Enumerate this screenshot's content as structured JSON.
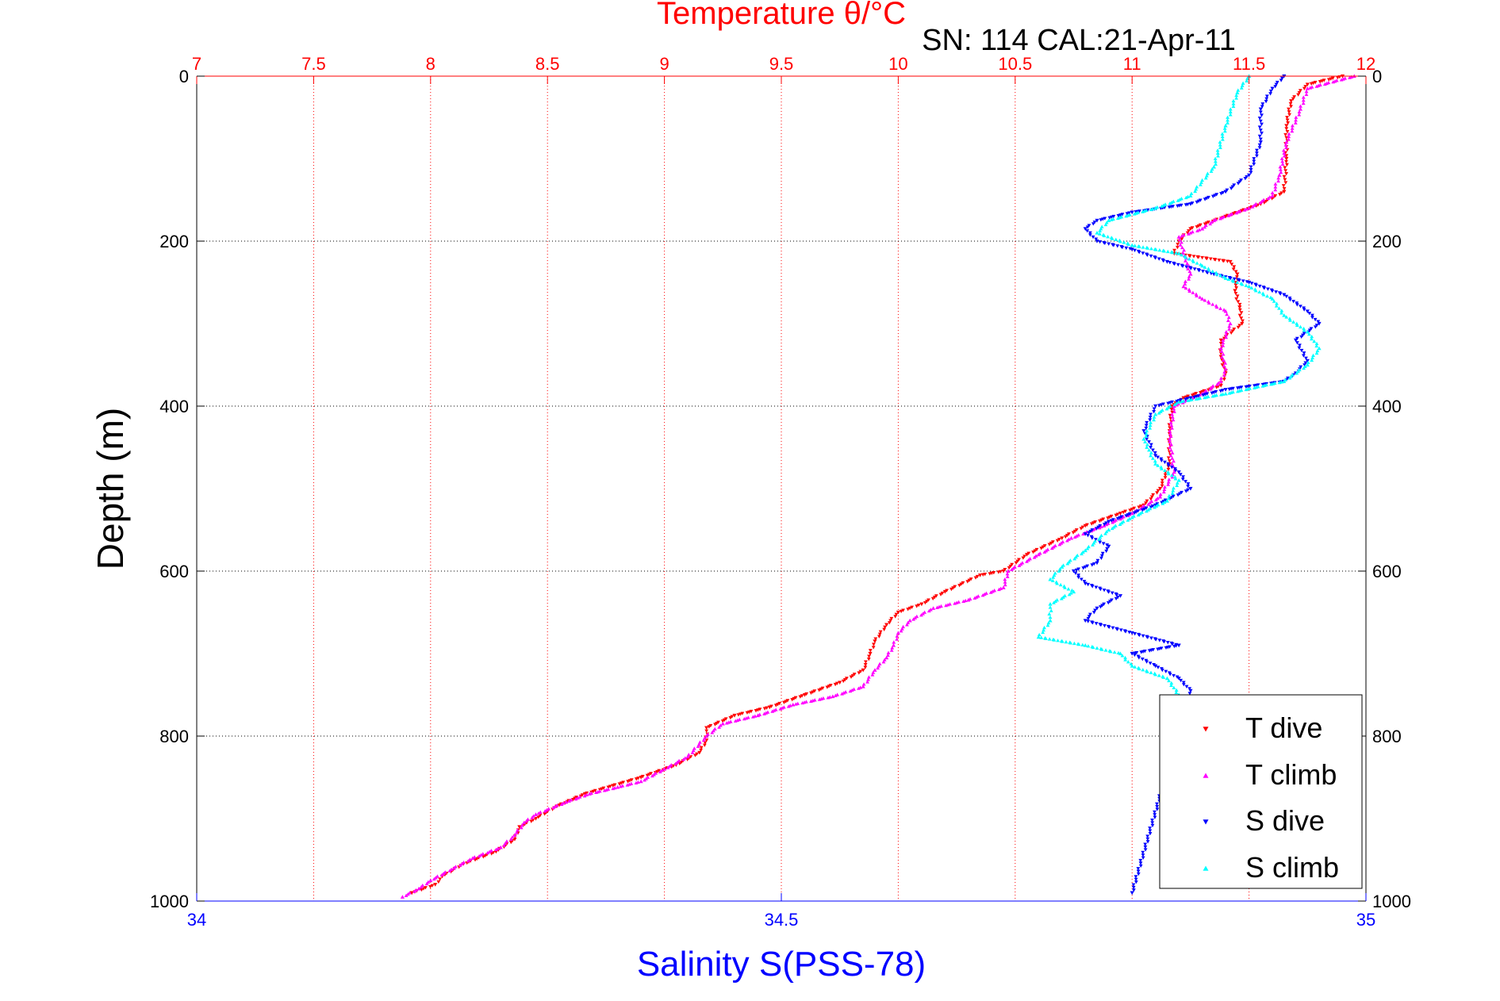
{
  "chart_data": {
    "type": "scatter",
    "title": "SN: 114  CAL:21-Apr-11",
    "top_axis": {
      "label": "Temperature θ/°C",
      "range": [
        7,
        12
      ],
      "ticks": [
        7,
        7.5,
        8,
        8.5,
        9,
        9.5,
        10,
        10.5,
        11,
        11.5,
        12
      ],
      "tick_labels": [
        "7",
        "7.5",
        "8",
        "8.5",
        "9",
        "9.5",
        "10",
        "10.5",
        "11",
        "11.5",
        "12"
      ],
      "color": "#ff0000"
    },
    "bottom_axis": {
      "label": "Salinity S(PSS-78)",
      "range": [
        34,
        35
      ],
      "ticks": [
        34,
        34.5,
        35
      ],
      "tick_labels": [
        "34",
        "34.5",
        "35"
      ],
      "color": "#0000ff"
    },
    "y_axis": {
      "label": "Depth (m)",
      "range": [
        0,
        1000
      ],
      "reversed": true,
      "ticks": [
        0,
        200,
        400,
        600,
        800,
        1000
      ],
      "tick_labels": [
        "0",
        "200",
        "400",
        "600",
        "800",
        "1000"
      ]
    },
    "grid": {
      "vertical": "red dotted at temperature ticks",
      "horizontal": "black dotted at depth ticks"
    },
    "legend": {
      "placement": "bottom-right",
      "entries": [
        "T dive",
        "T climb",
        "S dive",
        "S climb"
      ]
    },
    "series": [
      {
        "name": "T dive",
        "axis": "temperature",
        "color": "#ff0000",
        "marker": "triangle-down",
        "points": [
          [
            11.9,
            0
          ],
          [
            11.75,
            10
          ],
          [
            11.68,
            30
          ],
          [
            11.66,
            60
          ],
          [
            11.66,
            100
          ],
          [
            11.65,
            140
          ],
          [
            11.55,
            155
          ],
          [
            11.4,
            170
          ],
          [
            11.25,
            185
          ],
          [
            11.2,
            200
          ],
          [
            11.18,
            215
          ],
          [
            11.42,
            225
          ],
          [
            11.45,
            240
          ],
          [
            11.44,
            260
          ],
          [
            11.46,
            280
          ],
          [
            11.47,
            300
          ],
          [
            11.38,
            320
          ],
          [
            11.38,
            340
          ],
          [
            11.4,
            360
          ],
          [
            11.38,
            375
          ],
          [
            11.22,
            390
          ],
          [
            11.17,
            400
          ],
          [
            11.16,
            430
          ],
          [
            11.16,
            470
          ],
          [
            11.12,
            500
          ],
          [
            11.05,
            520
          ],
          [
            10.95,
            530
          ],
          [
            10.8,
            545
          ],
          [
            10.7,
            560
          ],
          [
            10.55,
            580
          ],
          [
            10.45,
            600
          ],
          [
            10.35,
            605
          ],
          [
            10.2,
            625
          ],
          [
            10.1,
            640
          ],
          [
            10.0,
            650
          ],
          [
            9.95,
            665
          ],
          [
            9.9,
            685
          ],
          [
            9.88,
            700
          ],
          [
            9.85,
            720
          ],
          [
            9.75,
            735
          ],
          [
            9.6,
            750
          ],
          [
            9.45,
            765
          ],
          [
            9.3,
            775
          ],
          [
            9.18,
            790
          ],
          [
            9.18,
            805
          ],
          [
            9.15,
            820
          ],
          [
            9.05,
            835
          ],
          [
            8.9,
            850
          ],
          [
            8.78,
            860
          ],
          [
            8.66,
            870
          ],
          [
            8.54,
            885
          ],
          [
            8.45,
            900
          ],
          [
            8.38,
            910
          ],
          [
            8.36,
            925
          ],
          [
            8.28,
            940
          ],
          [
            8.14,
            955
          ],
          [
            8.05,
            970
          ],
          [
            8.02,
            980
          ],
          [
            7.92,
            990
          ]
        ]
      },
      {
        "name": "T climb",
        "axis": "temperature",
        "color": "#ff00ff",
        "marker": "triangle-up",
        "points": [
          [
            11.95,
            0
          ],
          [
            11.75,
            15
          ],
          [
            11.72,
            40
          ],
          [
            11.66,
            80
          ],
          [
            11.63,
            120
          ],
          [
            11.6,
            145
          ],
          [
            11.5,
            160
          ],
          [
            11.35,
            175
          ],
          [
            11.3,
            185
          ],
          [
            11.2,
            195
          ],
          [
            11.25,
            240
          ],
          [
            11.22,
            255
          ],
          [
            11.3,
            270
          ],
          [
            11.4,
            285
          ],
          [
            11.42,
            300
          ],
          [
            11.38,
            330
          ],
          [
            11.4,
            355
          ],
          [
            11.38,
            370
          ],
          [
            11.3,
            385
          ],
          [
            11.18,
            400
          ],
          [
            11.16,
            440
          ],
          [
            11.18,
            480
          ],
          [
            11.12,
            510
          ],
          [
            11.0,
            530
          ],
          [
            10.88,
            545
          ],
          [
            10.74,
            560
          ],
          [
            10.6,
            580
          ],
          [
            10.47,
            600
          ],
          [
            10.45,
            620
          ],
          [
            10.3,
            635
          ],
          [
            10.15,
            645
          ],
          [
            10.05,
            660
          ],
          [
            10.0,
            675
          ],
          [
            9.98,
            690
          ],
          [
            9.95,
            705
          ],
          [
            9.9,
            720
          ],
          [
            9.85,
            740
          ],
          [
            9.72,
            752
          ],
          [
            9.55,
            762
          ],
          [
            9.4,
            775
          ],
          [
            9.25,
            785
          ],
          [
            9.18,
            800
          ],
          [
            9.1,
            825
          ],
          [
            9.0,
            840
          ],
          [
            8.9,
            855
          ],
          [
            8.8,
            862
          ],
          [
            8.68,
            870
          ],
          [
            8.58,
            880
          ],
          [
            8.45,
            895
          ],
          [
            8.4,
            905
          ],
          [
            8.36,
            920
          ],
          [
            8.3,
            935
          ],
          [
            8.18,
            948
          ],
          [
            8.1,
            960
          ],
          [
            8.0,
            975
          ],
          [
            7.95,
            985
          ],
          [
            7.88,
            995
          ]
        ]
      },
      {
        "name": "S dive",
        "axis": "salinity",
        "color": "#0000ff",
        "marker": "triangle-down",
        "points": [
          [
            34.93,
            0
          ],
          [
            34.92,
            15
          ],
          [
            34.91,
            40
          ],
          [
            34.91,
            80
          ],
          [
            34.9,
            120
          ],
          [
            34.88,
            140
          ],
          [
            34.85,
            155
          ],
          [
            34.8,
            165
          ],
          [
            34.77,
            175
          ],
          [
            34.76,
            185
          ],
          [
            34.77,
            200
          ],
          [
            34.8,
            210
          ],
          [
            34.83,
            225
          ],
          [
            34.87,
            240
          ],
          [
            34.9,
            250
          ],
          [
            34.93,
            265
          ],
          [
            34.95,
            285
          ],
          [
            34.96,
            300
          ],
          [
            34.94,
            320
          ],
          [
            34.95,
            345
          ],
          [
            34.94,
            360
          ],
          [
            34.93,
            370
          ],
          [
            34.88,
            380
          ],
          [
            34.85,
            390
          ],
          [
            34.82,
            400
          ],
          [
            34.81,
            430
          ],
          [
            34.82,
            460
          ],
          [
            34.84,
            480
          ],
          [
            34.85,
            500
          ],
          [
            34.82,
            520
          ],
          [
            34.78,
            540
          ],
          [
            34.76,
            555
          ],
          [
            34.78,
            570
          ],
          [
            34.77,
            590
          ],
          [
            34.75,
            600
          ],
          [
            34.76,
            615
          ],
          [
            34.79,
            630
          ],
          [
            34.77,
            645
          ],
          [
            34.76,
            660
          ],
          [
            34.8,
            675
          ],
          [
            34.84,
            690
          ],
          [
            34.8,
            700
          ],
          [
            34.82,
            715
          ],
          [
            34.84,
            730
          ],
          [
            34.85,
            745
          ],
          [
            34.8,
            990
          ]
        ]
      },
      {
        "name": "S climb",
        "axis": "salinity",
        "color": "#00ffff",
        "marker": "triangle-up",
        "points": [
          [
            34.9,
            0
          ],
          [
            34.89,
            20
          ],
          [
            34.88,
            60
          ],
          [
            34.87,
            110
          ],
          [
            34.85,
            145
          ],
          [
            34.82,
            160
          ],
          [
            34.78,
            175
          ],
          [
            34.77,
            190
          ],
          [
            34.8,
            205
          ],
          [
            34.84,
            215
          ],
          [
            34.86,
            230
          ],
          [
            34.88,
            245
          ],
          [
            34.9,
            255
          ],
          [
            34.92,
            270
          ],
          [
            34.93,
            290
          ],
          [
            34.95,
            310
          ],
          [
            34.96,
            330
          ],
          [
            34.95,
            350
          ],
          [
            34.93,
            370
          ],
          [
            34.88,
            385
          ],
          [
            34.84,
            395
          ],
          [
            34.82,
            410
          ],
          [
            34.81,
            440
          ],
          [
            34.82,
            470
          ],
          [
            34.84,
            490
          ],
          [
            34.83,
            515
          ],
          [
            34.8,
            535
          ],
          [
            34.78,
            550
          ],
          [
            34.76,
            575
          ],
          [
            34.74,
            595
          ],
          [
            34.73,
            610
          ],
          [
            34.75,
            625
          ],
          [
            34.73,
            640
          ],
          [
            34.73,
            660
          ],
          [
            34.72,
            680
          ],
          [
            34.76,
            690
          ],
          [
            34.79,
            700
          ],
          [
            34.8,
            715
          ],
          [
            34.83,
            730
          ],
          [
            34.84,
            750
          ]
        ]
      }
    ]
  }
}
